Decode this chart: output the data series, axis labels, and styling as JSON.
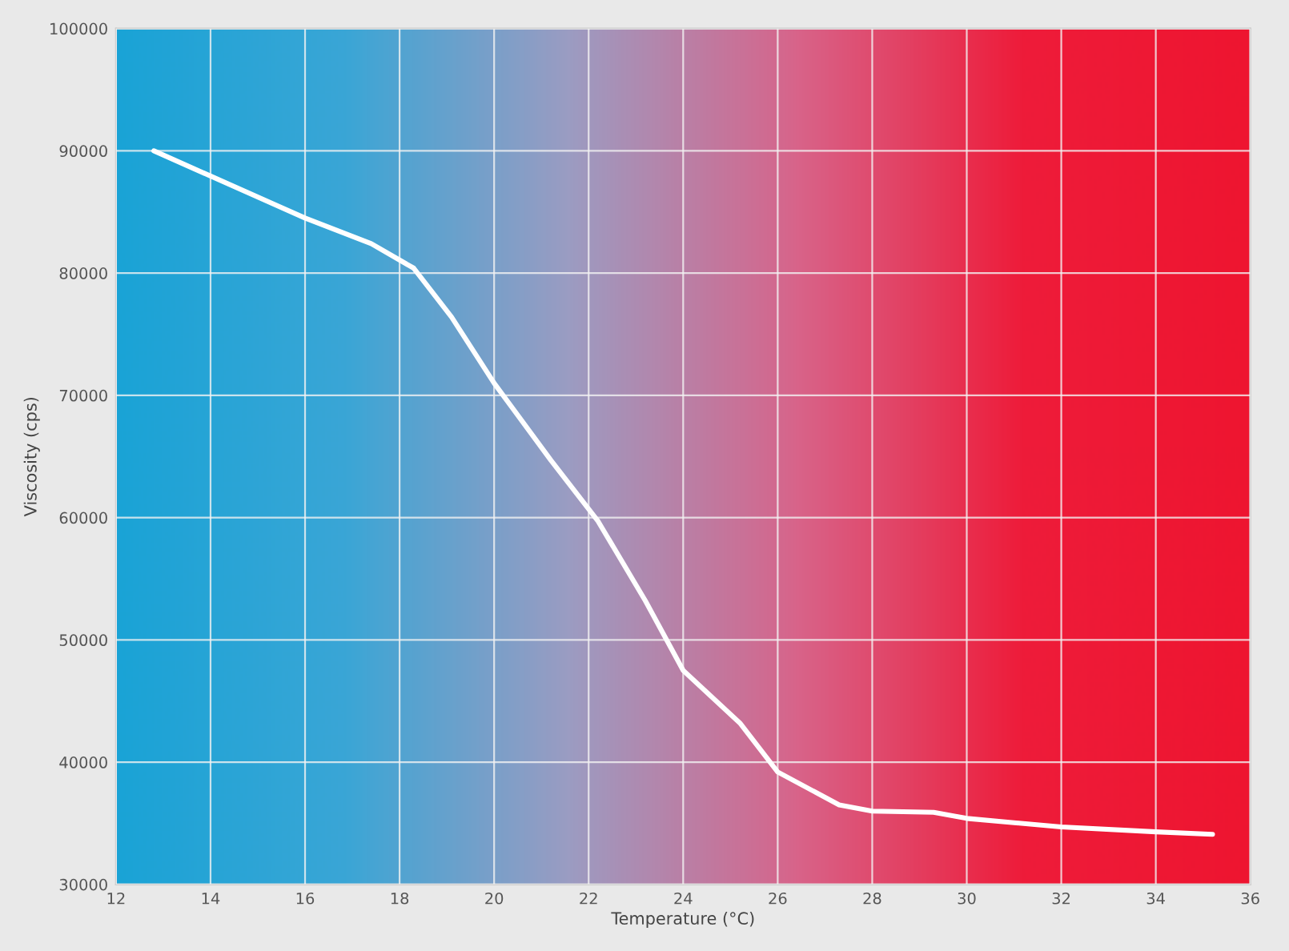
{
  "chart_data": {
    "type": "line",
    "xlabel": "Temperature (°C)",
    "ylabel": "Viscosity (cps)",
    "x": [
      12.8,
      16,
      17.4,
      18.3,
      19.1,
      20,
      21.2,
      22.2,
      23.2,
      24,
      25.2,
      26,
      27.3,
      28,
      29.3,
      30,
      32,
      34,
      35.2
    ],
    "series": [
      {
        "color": "#ffffff",
        "values": [
          90000,
          84500,
          82400,
          80400,
          76400,
          71000,
          64700,
          59700,
          53200,
          47500,
          43200,
          39200,
          36500,
          36000,
          35900,
          35400,
          34700,
          34300,
          34100
        ]
      }
    ],
    "xlim": [
      12,
      36
    ],
    "xticks": [
      12,
      14,
      16,
      18,
      20,
      22,
      24,
      26,
      28,
      30,
      32,
      34,
      36
    ],
    "ylim": [
      30000,
      100000
    ],
    "yticks": [
      30000,
      40000,
      50000,
      60000,
      70000,
      80000,
      90000,
      100000
    ],
    "grid": true,
    "legend": false,
    "marker": "none",
    "line_style": "solid"
  }
}
